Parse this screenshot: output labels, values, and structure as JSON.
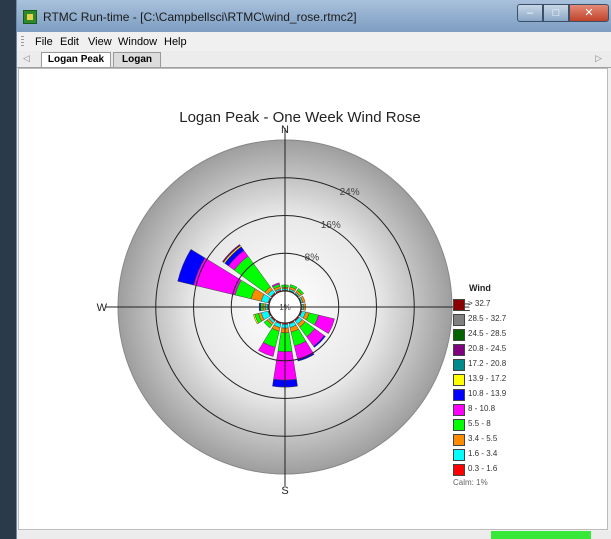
{
  "window": {
    "title": "RTMC Run-time - [C:\\Campbellsci\\RTMC\\wind_rose.rtmc2]"
  },
  "menu": {
    "items": [
      "File",
      "Edit",
      "View",
      "Window",
      "Help"
    ]
  },
  "tabs": [
    {
      "label": "Logan Peak",
      "active": true
    },
    {
      "label": "Logan",
      "active": false
    }
  ],
  "chart_data": {
    "type": "wind_rose",
    "title": "Logan Peak  - One Week Wind Rose",
    "directions": [
      "N",
      "NNE",
      "NE",
      "ENE",
      "E",
      "ESE",
      "SE",
      "SSE",
      "S",
      "SSW",
      "SW",
      "WSW",
      "W",
      "WNW",
      "NW",
      "NNW"
    ],
    "direction_labels": {
      "N": "N",
      "E": "E",
      "S": "S",
      "W": "W"
    },
    "ring_labels": [
      "8%",
      "16%",
      "24%"
    ],
    "ring_values": [
      8,
      16,
      24
    ],
    "max_percent": 32,
    "calm_percent": 1,
    "center_label": "1%",
    "legend_title": "Wind",
    "legend_position": "right",
    "speed_bins": [
      {
        "label": "> 32.7",
        "color": "#8b0000"
      },
      {
        "label": "28.5 - 32.7",
        "color": "#808080"
      },
      {
        "label": "24.5 - 28.5",
        "color": "#006400"
      },
      {
        "label": "20.8 - 24.5",
        "color": "#800080"
      },
      {
        "label": "17.2 - 20.8",
        "color": "#008b8b"
      },
      {
        "label": "13.9 - 17.2",
        "color": "#ffff00"
      },
      {
        "label": "10.8 - 13.9",
        "color": "#0000ff"
      },
      {
        "label": "8 - 10.8",
        "color": "#ff00ff"
      },
      {
        "label": "5.5 - 8",
        "color": "#00ff00"
      },
      {
        "label": "3.4 - 5.5",
        "color": "#ff8c00"
      },
      {
        "label": "1.6 - 3.4",
        "color": "#00ffff"
      },
      {
        "label": "0.3 - 1.6",
        "color": "#ff0000"
      }
    ],
    "calm_label": "Calm: 1%",
    "bin_order_outward": [
      "0.3 - 1.6",
      "1.6 - 3.4",
      "3.4 - 5.5",
      "5.5 - 8",
      "8 - 10.8",
      "10.8 - 13.9",
      "13.9 - 17.2",
      "20.8 - 24.5"
    ],
    "series": [
      {
        "direction": "N",
        "values": [
          0.2,
          0.3,
          0.3,
          0.5,
          0,
          0,
          0,
          0
        ]
      },
      {
        "direction": "NNE",
        "values": [
          0.2,
          0.3,
          0.5,
          0.5,
          0,
          0,
          0,
          0
        ]
      },
      {
        "direction": "NE",
        "values": [
          0.2,
          0.3,
          0.5,
          0.5,
          0,
          0,
          0,
          0
        ]
      },
      {
        "direction": "ENE",
        "values": [
          0.2,
          0.3,
          0.5,
          0,
          0,
          0,
          0,
          0
        ]
      },
      {
        "direction": "E",
        "values": [
          0.2,
          0.3,
          0.5,
          0,
          0,
          0,
          0,
          0
        ]
      },
      {
        "direction": "ESE",
        "values": [
          0.3,
          0.8,
          0.8,
          2.0,
          3.5,
          0,
          0,
          0
        ]
      },
      {
        "direction": "SE",
        "values": [
          0.3,
          0.8,
          0.8,
          2.5,
          2.5,
          0.3,
          0,
          0
        ]
      },
      {
        "direction": "SSE",
        "values": [
          0.3,
          0.8,
          1.0,
          3.0,
          3.0,
          0.3,
          0,
          0
        ]
      },
      {
        "direction": "S",
        "values": [
          0.3,
          0.8,
          1.0,
          4.0,
          6.0,
          1.5,
          0,
          0
        ]
      },
      {
        "direction": "SSW",
        "values": [
          0.3,
          0.8,
          0.8,
          3.5,
          2.0,
          0,
          0,
          0
        ]
      },
      {
        "direction": "SW",
        "values": [
          0.3,
          0.5,
          0.5,
          0.8,
          0,
          0,
          0,
          0
        ]
      },
      {
        "direction": "WSW",
        "values": [
          0.3,
          1.5,
          0.6,
          0.8,
          0,
          0,
          0.3,
          0
        ]
      },
      {
        "direction": "W",
        "values": [
          0.3,
          0.5,
          0.5,
          0.5,
          0,
          0.3,
          0,
          0
        ]
      },
      {
        "direction": "WNW",
        "values": [
          0.3,
          1.5,
          2.2,
          3.5,
          9.0,
          3.5,
          0,
          0
        ]
      },
      {
        "direction": "NW",
        "values": [
          0.3,
          0.8,
          0.8,
          8.0,
          1.5,
          1.0,
          0.3,
          0.3
        ]
      },
      {
        "direction": "NNW",
        "values": [
          0.3,
          0.3,
          0.5,
          0.5,
          0.3,
          0,
          0,
          0
        ]
      }
    ]
  }
}
